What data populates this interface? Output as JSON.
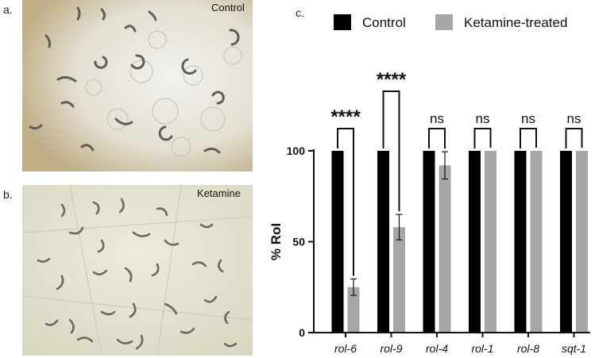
{
  "panels": {
    "a": {
      "letter": "a.",
      "label": "Control"
    },
    "b": {
      "letter": "b.",
      "label": "Ketamine"
    },
    "c": {
      "letter": "c."
    }
  },
  "colors": {
    "control": "#000000",
    "treated": "#a6a6a6"
  },
  "chart_data": {
    "type": "bar",
    "ylabel": "% RoI",
    "ylim": [
      0,
      100
    ],
    "yticks": [
      0,
      50,
      100
    ],
    "categories": [
      "rol-6",
      "rol-9",
      "rol-4",
      "rol-1",
      "rol-8",
      "sqt-1"
    ],
    "legend_position": "top",
    "series": [
      {
        "name": "Control",
        "values": [
          100,
          100,
          100,
          100,
          100,
          100
        ]
      },
      {
        "name": "Ketamine-treated",
        "values": [
          25,
          58,
          92,
          100,
          100,
          100
        ],
        "errors": [
          4.5,
          7,
          7.5,
          0,
          0,
          0
        ]
      }
    ],
    "significance": [
      "****",
      "****",
      "ns",
      "ns",
      "ns",
      "ns"
    ]
  }
}
